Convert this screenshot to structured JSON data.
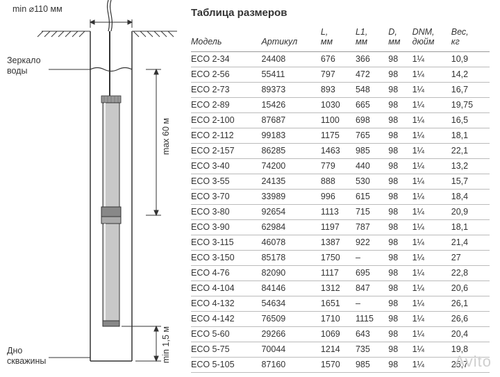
{
  "title": "Таблица размеров",
  "columns": [
    {
      "key": "model",
      "label": "Модель"
    },
    {
      "key": "art",
      "label": "Артикул"
    },
    {
      "key": "L",
      "label": "L,",
      "sub": "мм"
    },
    {
      "key": "L1",
      "label": "L1,",
      "sub": "мм"
    },
    {
      "key": "D",
      "label": "D,",
      "sub": "мм"
    },
    {
      "key": "DNM",
      "label": "DNM,",
      "sub": "дюйм"
    },
    {
      "key": "W",
      "label": "Вес,",
      "sub": "кг"
    }
  ],
  "rows": [
    {
      "model": "ECO 2-34",
      "art": "24408",
      "L": "676",
      "L1": "366",
      "D": "98",
      "DNM": "1¼",
      "W": "10,9"
    },
    {
      "model": "ECO 2-56",
      "art": "55411",
      "L": "797",
      "L1": "472",
      "D": "98",
      "DNM": "1¼",
      "W": "14,2"
    },
    {
      "model": "ECO 2-73",
      "art": "89373",
      "L": "893",
      "L1": "548",
      "D": "98",
      "DNM": "1¼",
      "W": "16,7"
    },
    {
      "model": "ECO 2-89",
      "art": "15426",
      "L": "1030",
      "L1": "665",
      "D": "98",
      "DNM": "1¼",
      "W": "19,75"
    },
    {
      "model": "ECO 2-100",
      "art": "87687",
      "L": "1100",
      "L1": "698",
      "D": "98",
      "DNM": "1¼",
      "W": "16,5"
    },
    {
      "model": "ECO 2-112",
      "art": "99183",
      "L": "1175",
      "L1": "765",
      "D": "98",
      "DNM": "1¼",
      "W": "18,1"
    },
    {
      "model": "ECO 2-157",
      "art": "86285",
      "L": "1463",
      "L1": "985",
      "D": "98",
      "DNM": "1¼",
      "W": "22,1"
    },
    {
      "model": "ECO 3-40",
      "art": "74200",
      "L": "779",
      "L1": "440",
      "D": "98",
      "DNM": "1¼",
      "W": "13,2"
    },
    {
      "model": "ECO 3-55",
      "art": "24135",
      "L": "888",
      "L1": "530",
      "D": "98",
      "DNM": "1¼",
      "W": "15,7"
    },
    {
      "model": "ECO 3-70",
      "art": "33989",
      "L": "996",
      "L1": "615",
      "D": "98",
      "DNM": "1¼",
      "W": "18,4"
    },
    {
      "model": "ECO 3-80",
      "art": "92654",
      "L": "1113",
      "L1": "715",
      "D": "98",
      "DNM": "1¼",
      "W": "20,9"
    },
    {
      "model": "ECO 3-90",
      "art": "62984",
      "L": "1197",
      "L1": "787",
      "D": "98",
      "DNM": "1¼",
      "W": "18,1"
    },
    {
      "model": "ECO 3-115",
      "art": "46078",
      "L": "1387",
      "L1": "922",
      "D": "98",
      "DNM": "1¼",
      "W": "21,4"
    },
    {
      "model": "ECO 3-150",
      "art": "85178",
      "L": "1750",
      "L1": "–",
      "D": "98",
      "DNM": "1¼",
      "W": "27"
    },
    {
      "model": "ECO 4-76",
      "art": "82090",
      "L": "1117",
      "L1": "695",
      "D": "98",
      "DNM": "1¼",
      "W": "22,8"
    },
    {
      "model": "ECO 4-104",
      "art": "84146",
      "L": "1312",
      "L1": "847",
      "D": "98",
      "DNM": "1¼",
      "W": "20,6"
    },
    {
      "model": "ECO 4-132",
      "art": "54634",
      "L": "1651",
      "L1": "–",
      "D": "98",
      "DNM": "1¼",
      "W": "26,1"
    },
    {
      "model": "ECO 4-142",
      "art": "76509",
      "L": "1710",
      "L1": "1115",
      "D": "98",
      "DNM": "1¼",
      "W": "26,6"
    },
    {
      "model": "ECO 5-60",
      "art": "29266",
      "L": "1069",
      "L1": "643",
      "D": "98",
      "DNM": "1¼",
      "W": "20,4"
    },
    {
      "model": "ECO 5-75",
      "art": "70044",
      "L": "1214",
      "L1": "735",
      "D": "98",
      "DNM": "1¼",
      "W": "19,8"
    },
    {
      "model": "ECO 5-105",
      "art": "87160",
      "L": "1570",
      "L1": "985",
      "D": "98",
      "DNM": "1¼",
      "W": "25,7"
    }
  ],
  "diagram": {
    "min_diameter": "min ⌀110 мм",
    "mirror_label_1": "Зеркало",
    "mirror_label_2": "воды",
    "max_depth": "max 60 м",
    "min_clearance": "min 1,5 м",
    "bottom_label_1": "Дно",
    "bottom_label_2": "скважины",
    "colors": {
      "outline": "#333333",
      "pump_body": "#888888",
      "pump_light": "#bbbbbb",
      "water_line": "#333333",
      "hatch": "#333333"
    }
  },
  "watermark": "Avito",
  "style": {
    "font_family": "Arial, sans-serif",
    "base_font_size": 12.5,
    "title_font_size": 15,
    "border_color": "#bbbbbb",
    "header_border_color": "#999999",
    "text_color": "#333333",
    "background_color": "#ffffff"
  }
}
